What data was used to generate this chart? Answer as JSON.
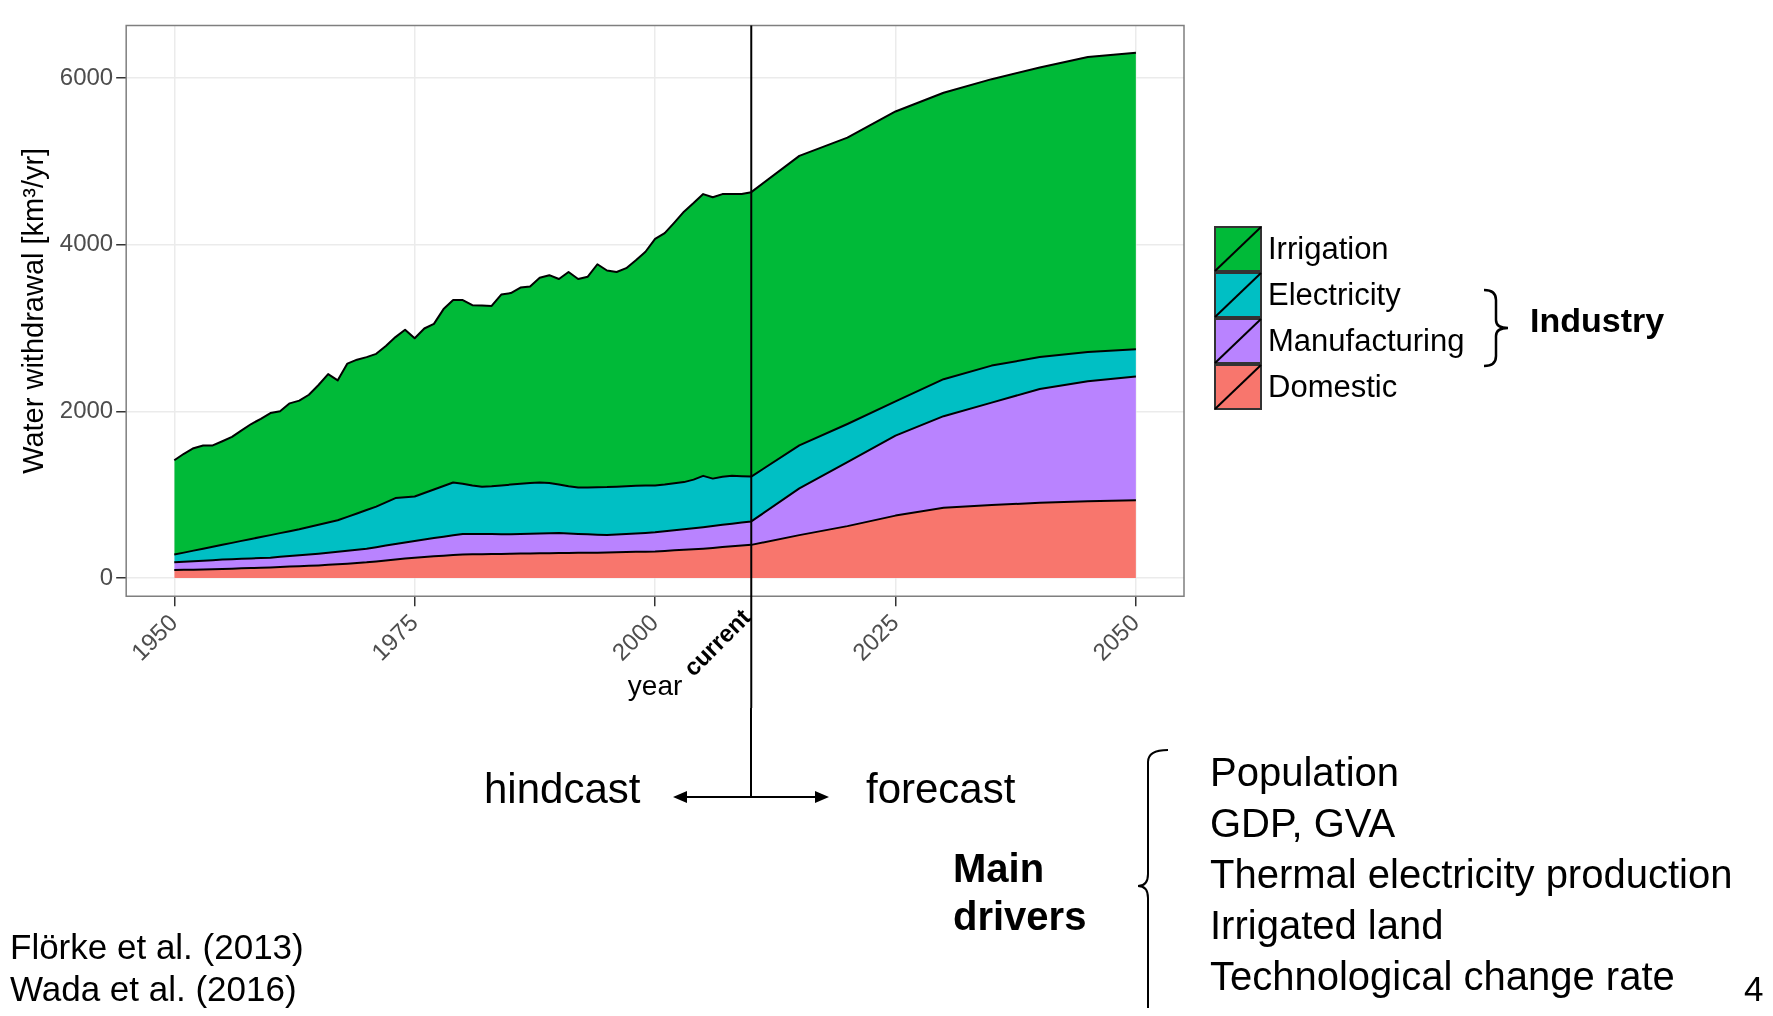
{
  "chart_data": {
    "type": "area",
    "stacked": true,
    "xlabel": "year",
    "ylabel": "Water withdrawal [km³/yr]",
    "x": [
      1950,
      1951,
      1952,
      1953,
      1954,
      1955,
      1956,
      1957,
      1958,
      1959,
      1960,
      1961,
      1962,
      1963,
      1964,
      1965,
      1966,
      1967,
      1968,
      1969,
      1970,
      1971,
      1972,
      1973,
      1974,
      1975,
      1976,
      1977,
      1978,
      1979,
      1980,
      1981,
      1982,
      1983,
      1984,
      1985,
      1986,
      1987,
      1988,
      1989,
      1990,
      1991,
      1992,
      1993,
      1994,
      1995,
      1996,
      1997,
      1998,
      1999,
      2000,
      2001,
      2002,
      2003,
      2004,
      2005,
      2006,
      2007,
      2008,
      2009,
      2010,
      2015,
      2020,
      2025,
      2030,
      2035,
      2040,
      2045,
      2050
    ],
    "series": [
      {
        "name": "Domestic",
        "color": "#f8766d",
        "values": [
          94,
          97,
          99,
          102,
          105,
          108,
          111,
          115,
          119,
          122,
          126,
          131,
          136,
          141,
          145,
          150,
          157,
          164,
          171,
          179,
          187,
          198,
          209,
          220,
          232,
          243,
          251,
          259,
          266,
          274,
          281,
          283,
          285,
          287,
          288,
          290,
          292,
          294,
          296,
          297,
          299,
          300,
          301,
          302,
          303,
          304,
          307,
          310,
          313,
          315,
          318,
          324,
          331,
          337,
          344,
          351,
          360,
          370,
          380,
          390,
          397,
          514,
          622,
          748,
          842,
          874,
          902,
          921,
          931
        ]
      },
      {
        "name": "Manufacturing",
        "color": "#b983ff",
        "values": [
          93,
          97,
          101,
          104,
          108,
          112,
          113,
          114,
          115,
          116,
          117,
          122,
          126,
          131,
          135,
          140,
          145,
          150,
          154,
          159,
          164,
          171,
          179,
          186,
          194,
          201,
          210,
          220,
          229,
          238,
          247,
          244,
          242,
          239,
          237,
          234,
          235,
          236,
          237,
          238,
          239,
          233,
          227,
          222,
          216,
          210,
          214,
          218,
          221,
          225,
          229,
          235,
          240,
          246,
          251,
          257,
          262,
          267,
          271,
          276,
          281,
          561,
          767,
          959,
          1099,
          1230,
          1366,
          1440,
          1486
        ]
      },
      {
        "name": "Electricity",
        "color": "#00bfc4",
        "values": [
          94,
          110,
          128,
          145,
          161,
          178,
          197,
          216,
          234,
          253,
          271,
          285,
          299,
          313,
          332,
          348,
          363,
          378,
          408,
          436,
          464,
          487,
          519,
          552,
          542,
          533,
          558,
          582,
          608,
          633,
          602,
          583,
          568,
          574,
          585,
          596,
          603,
          610,
          612,
          605,
          582,
          567,
          556,
          561,
          569,
          576,
          574,
          572,
          571,
          568,
          563,
          561,
          564,
          567,
          585,
          617,
          570,
          578,
          574,
          554,
          538,
          515,
          458,
          411,
          444,
          444,
          383,
          351,
          328
        ]
      },
      {
        "name": "Irrigation",
        "color": "#00ba38",
        "values": [
          1131,
          1186,
          1229,
          1239,
          1216,
          1242,
          1272,
          1325,
          1379,
          1419,
          1464,
          1463,
          1534,
          1543,
          1586,
          1677,
          1781,
          1679,
          1839,
          1845,
          1835,
          1833,
          1875,
          1932,
          2011,
          1899,
          1974,
          1988,
          2123,
          2189,
          2204,
          2163,
          2173,
          2164,
          2290,
          2298,
          2354,
          2358,
          2456,
          2493,
          2467,
          2571,
          2503,
          2530,
          2676,
          2599,
          2576,
          2617,
          2706,
          2806,
          2958,
          3018,
          3129,
          3245,
          3318,
          3381,
          3376,
          3391,
          3381,
          3386,
          3413,
          3474,
          3437,
          3479,
          3437,
          3437,
          3475,
          3540,
          3558
        ]
      }
    ],
    "xlim": [
      1945,
      2055
    ],
    "xticks": [
      1950,
      1975,
      2000,
      2025,
      2050
    ],
    "ylim": [
      -220,
      6630
    ],
    "yticks": [
      0,
      2000,
      4000,
      6000
    ],
    "grid": true,
    "legend": "right",
    "ref_lines": [
      {
        "axis": "x",
        "value": 2010,
        "label": "current",
        "color": "#000000"
      }
    ],
    "annotations": [
      "Industry",
      "hindcast",
      "forecast",
      "Main drivers",
      "Population",
      "GDP, GVA",
      "Thermal electricity production",
      "Irrigated land",
      "Technological change rate",
      "Flörke et al. (2013)",
      "Wada et al. (2016)",
      "4"
    ]
  }
}
